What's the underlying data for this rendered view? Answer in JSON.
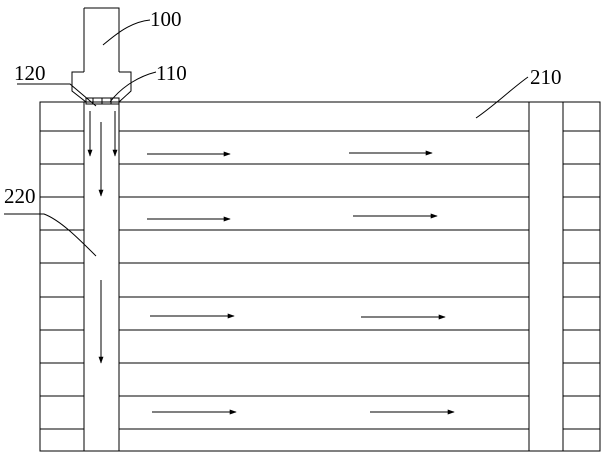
{
  "labels": {
    "part_100": "100",
    "part_110": "110",
    "part_120": "120",
    "part_210": "210",
    "part_220": "220"
  },
  "diagram": {
    "type": "patent-line-drawing",
    "stroke_color": "#000000",
    "background_color": "#ffffff",
    "components": {
      "nozzle_head": "100",
      "outlet": "110",
      "shoulder": "120",
      "panel_body": "210",
      "vertical_channel": "220"
    },
    "horizontal_flow_arrow_count": 8,
    "vertical_flow_arrow_count": 4,
    "flow_direction_horizontal": "right",
    "flow_direction_vertical": "down"
  }
}
